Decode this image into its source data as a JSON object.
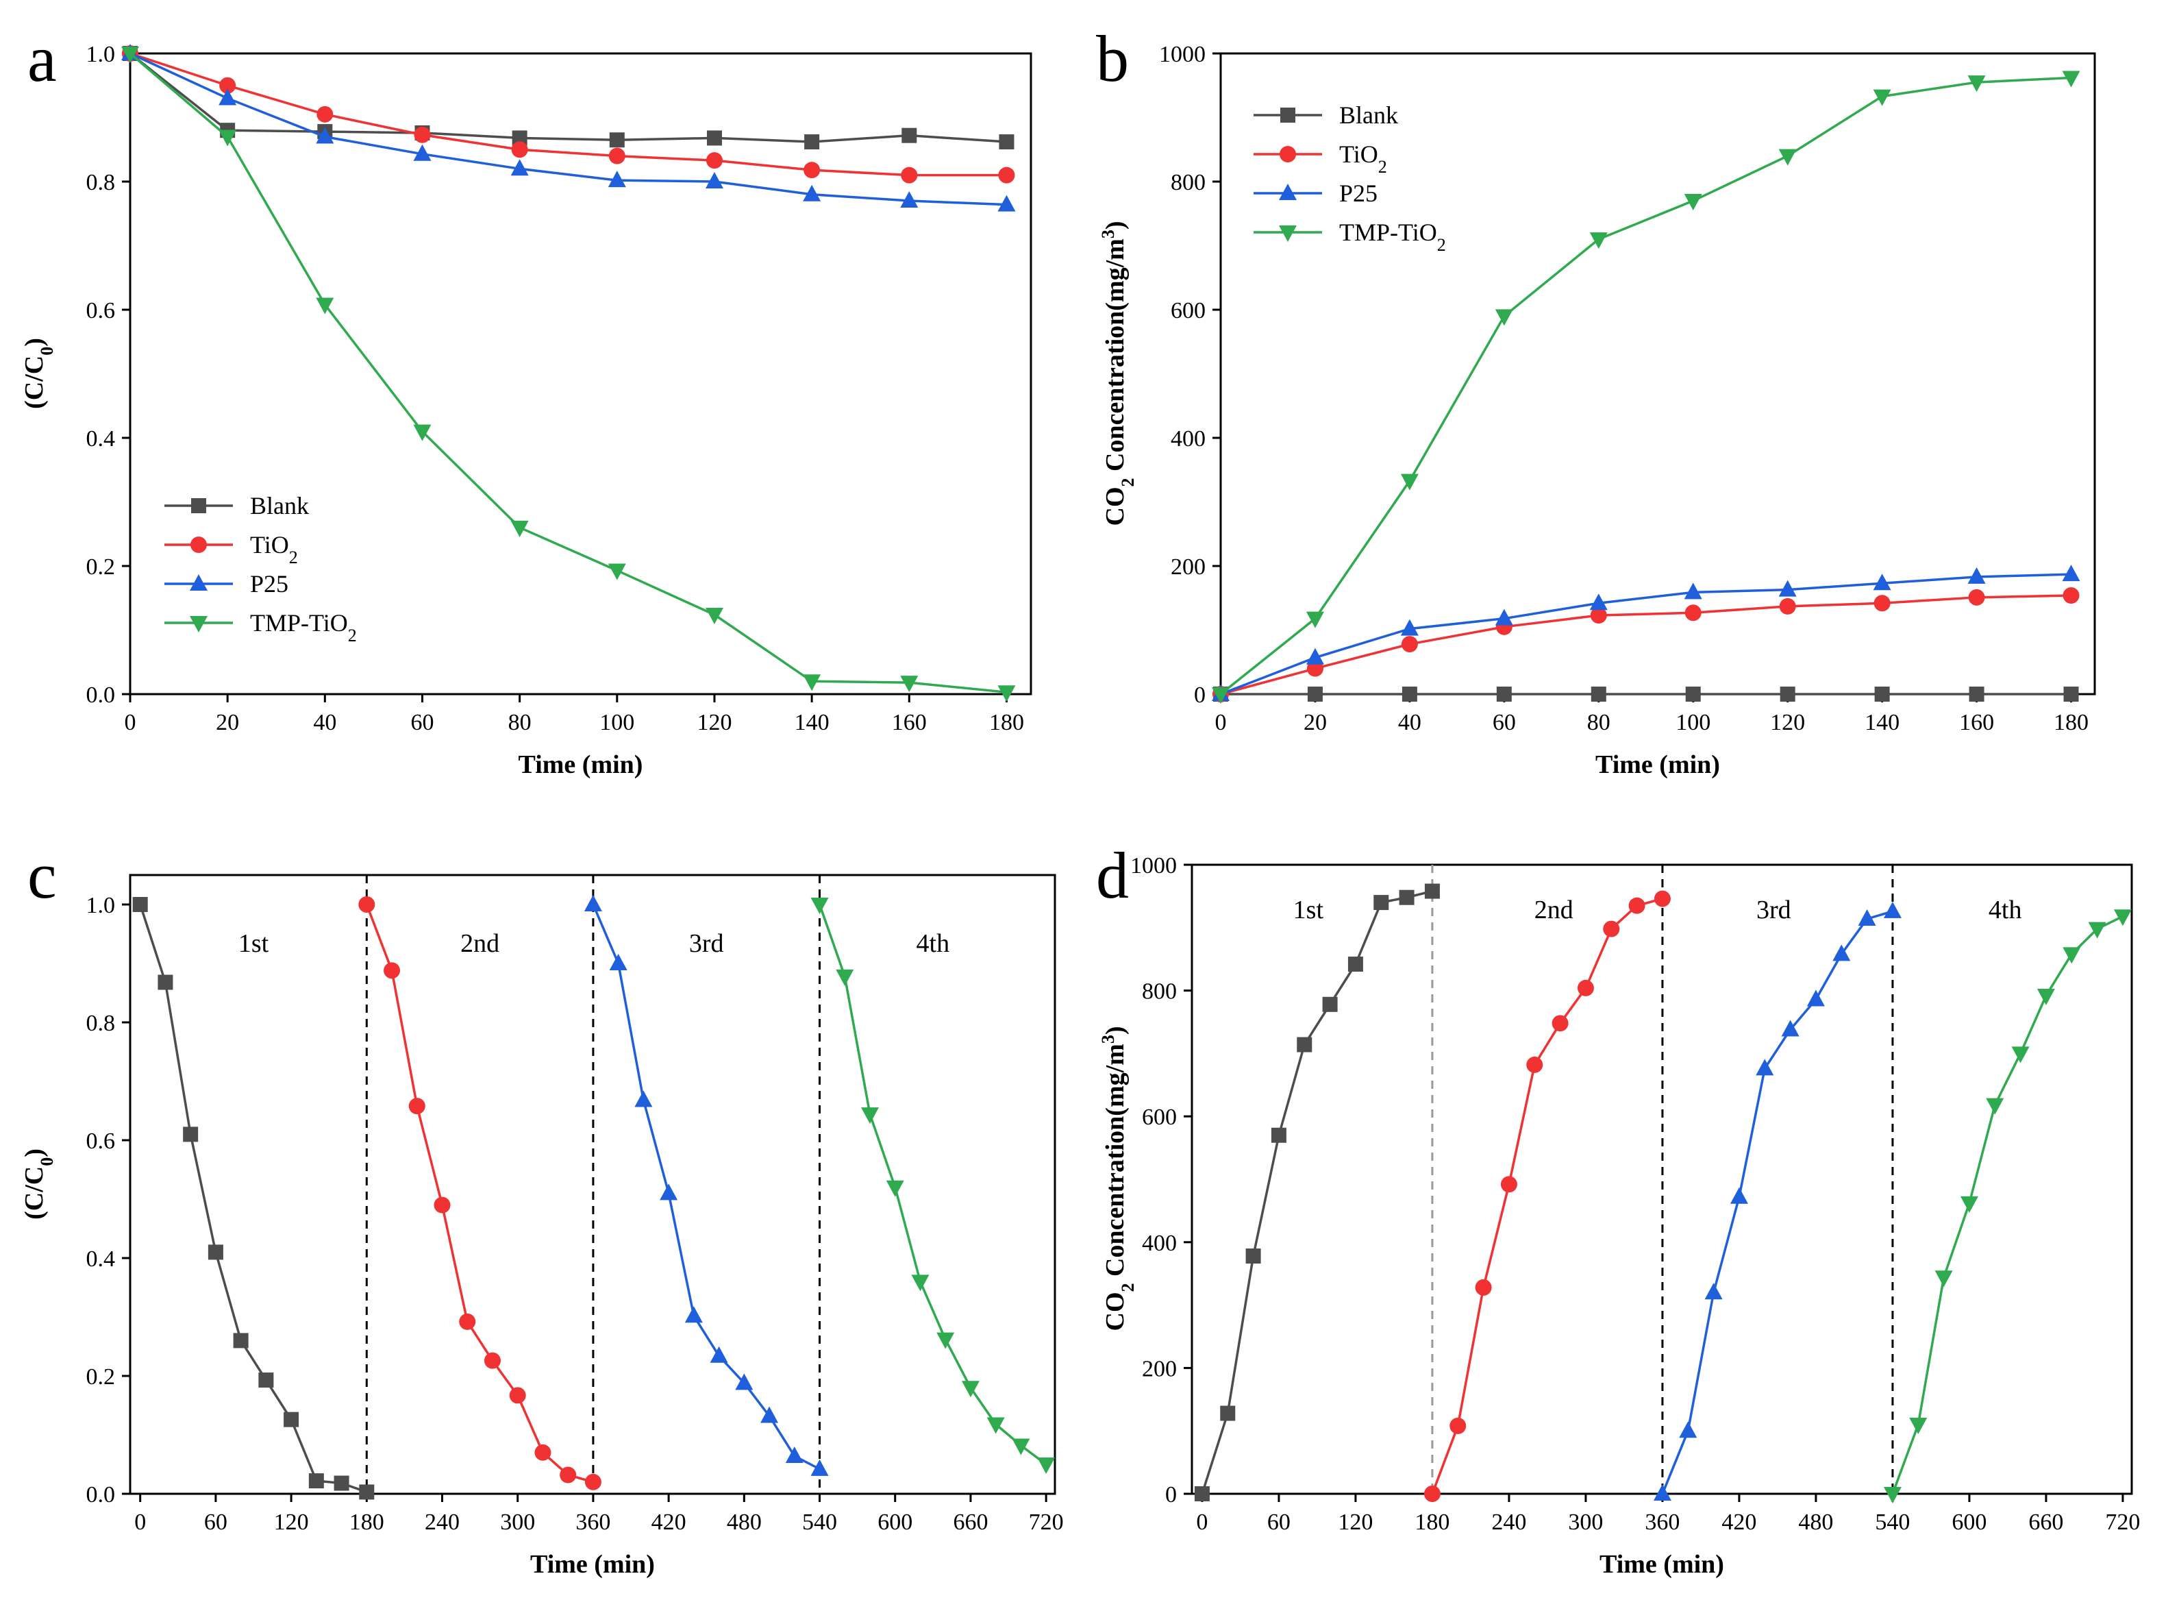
{
  "colors": {
    "Blank": "#4d4d4d",
    "TiO2": "#f03232",
    "P25": "#1f5fdc",
    "TMP-TiO2": "#2faa4f",
    "cycle1": "#4d4d4d",
    "cycle2": "#f03232",
    "cycle3": "#1f5fdc",
    "cycle4": "#2faa4f",
    "grey_dashes": "#999999",
    "black_dashes": "#000000"
  },
  "chart_data": [
    {
      "id": "a",
      "panel_label": "a",
      "type": "line",
      "xlabel": "Time (min)",
      "ylabel": "(C/C0)",
      "ylabel_main": "(C/C",
      "ylabel_sub": "0",
      "ylabel_tail": ")",
      "xlim": [
        0,
        185
      ],
      "ylim": [
        0,
        1.0
      ],
      "xticks": [
        0,
        20,
        40,
        60,
        80,
        100,
        120,
        140,
        160,
        180
      ],
      "xtick_labels": [
        "0",
        "20",
        "40",
        "60",
        "80",
        "100",
        "120",
        "140",
        "160",
        "180"
      ],
      "yticks": [
        0,
        0.2,
        0.4,
        0.6,
        0.8,
        1.0
      ],
      "ytick_labels": [
        "0.0",
        "0.2",
        "0.4",
        "0.6",
        "0.8",
        "1.0"
      ],
      "legend_position": "bottom-left",
      "series": [
        {
          "name": "Blank",
          "label": "Blank",
          "label_sub": "",
          "label_tail": "",
          "marker": "square",
          "color_key": "Blank",
          "x": [
            0,
            20,
            40,
            60,
            80,
            100,
            120,
            140,
            160,
            180
          ],
          "y": [
            1.0,
            0.88,
            0.878,
            0.876,
            0.868,
            0.865,
            0.868,
            0.862,
            0.872,
            0.862
          ]
        },
        {
          "name": "TiO2",
          "label": "TiO",
          "label_sub": "2",
          "label_tail": "",
          "marker": "circle",
          "color_key": "TiO2",
          "x": [
            0,
            20,
            40,
            60,
            80,
            100,
            120,
            140,
            160,
            180
          ],
          "y": [
            1.0,
            0.95,
            0.905,
            0.873,
            0.85,
            0.84,
            0.833,
            0.818,
            0.81,
            0.81
          ]
        },
        {
          "name": "P25",
          "label": "P25",
          "label_sub": "",
          "label_tail": "",
          "marker": "triangle-up",
          "color_key": "P25",
          "x": [
            0,
            20,
            40,
            60,
            80,
            100,
            120,
            140,
            160,
            180
          ],
          "y": [
            1.0,
            0.93,
            0.87,
            0.843,
            0.82,
            0.802,
            0.8,
            0.78,
            0.77,
            0.764
          ]
        },
        {
          "name": "TMP-TiO2",
          "label": "TMP-TiO",
          "label_sub": "2",
          "label_tail": "",
          "marker": "triangle-down",
          "color_key": "TMP-TiO2",
          "x": [
            0,
            20,
            40,
            60,
            80,
            100,
            120,
            140,
            160,
            180
          ],
          "y": [
            1.0,
            0.87,
            0.608,
            0.41,
            0.26,
            0.193,
            0.124,
            0.02,
            0.018,
            0.003
          ]
        }
      ]
    },
    {
      "id": "b",
      "panel_label": "b",
      "type": "line",
      "xlabel": "Time (min)",
      "ylabel": "CO2 Concentration(mg/m3)",
      "ylabel_main": "CO",
      "ylabel_sub": "2",
      "ylabel_mid": " Concentration(mg/m",
      "ylabel_sup": "3",
      "ylabel_tail": ")",
      "xlim": [
        0,
        185
      ],
      "ylim": [
        0,
        1000
      ],
      "xticks": [
        0,
        20,
        40,
        60,
        80,
        100,
        120,
        140,
        160,
        180
      ],
      "xtick_labels": [
        "0",
        "20",
        "40",
        "60",
        "80",
        "100",
        "120",
        "140",
        "160",
        "180"
      ],
      "yticks": [
        0,
        200,
        400,
        600,
        800,
        1000
      ],
      "ytick_labels": [
        "0",
        "200",
        "400",
        "600",
        "800",
        "1000"
      ],
      "legend_position": "top-left",
      "series": [
        {
          "name": "Blank",
          "label": "Blank",
          "label_sub": "",
          "label_tail": "",
          "marker": "square",
          "color_key": "Blank",
          "x": [
            0,
            20,
            40,
            60,
            80,
            100,
            120,
            140,
            160,
            180
          ],
          "y": [
            0,
            0,
            0,
            0,
            0,
            0,
            0,
            0,
            0,
            0
          ]
        },
        {
          "name": "TiO2",
          "label": "TiO",
          "label_sub": "2",
          "label_tail": "",
          "marker": "circle",
          "color_key": "TiO2",
          "x": [
            0,
            20,
            40,
            60,
            80,
            100,
            120,
            140,
            160,
            180
          ],
          "y": [
            0,
            40,
            78,
            105,
            123,
            127,
            137,
            142,
            151,
            154
          ]
        },
        {
          "name": "P25",
          "label": "P25",
          "label_sub": "",
          "label_tail": "",
          "marker": "triangle-up",
          "color_key": "P25",
          "x": [
            0,
            20,
            40,
            60,
            80,
            100,
            120,
            140,
            160,
            180
          ],
          "y": [
            0,
            57,
            102,
            118,
            142,
            159,
            163,
            173,
            183,
            187
          ]
        },
        {
          "name": "TMP-TiO2",
          "label": "TMP-TiO",
          "label_sub": "2",
          "label_tail": "",
          "marker": "triangle-down",
          "color_key": "TMP-TiO2",
          "x": [
            0,
            20,
            40,
            60,
            80,
            100,
            120,
            140,
            160,
            180
          ],
          "y": [
            0,
            118,
            333,
            590,
            710,
            770,
            840,
            933,
            955,
            962
          ]
        }
      ]
    },
    {
      "id": "c",
      "panel_label": "c",
      "type": "line",
      "xlabel": "Time (min)",
      "ylabel": "(C/C0)",
      "ylabel_main": "(C/C",
      "ylabel_sub": "0",
      "ylabel_tail": ")",
      "xlim": [
        -8,
        727
      ],
      "ylim": [
        0,
        1.05
      ],
      "xticks": [
        0,
        60,
        120,
        180,
        240,
        300,
        360,
        420,
        480,
        540,
        600,
        660,
        720
      ],
      "xtick_labels": [
        "0",
        "60",
        "120",
        "180",
        "240",
        "300",
        "360",
        "420",
        "480",
        "540",
        "600",
        "660",
        "720"
      ],
      "yticks": [
        0,
        0.2,
        0.4,
        0.6,
        0.8,
        1.0
      ],
      "ytick_labels": [
        "0.0",
        "0.2",
        "0.4",
        "0.6",
        "0.8",
        "1.0"
      ],
      "dividers": [
        {
          "x": 180,
          "style_key": "black_dashes"
        },
        {
          "x": 360,
          "style_key": "black_dashes"
        },
        {
          "x": 540,
          "style_key": "black_dashes"
        }
      ],
      "cycle_labels": [
        {
          "text": "1st",
          "x": 90,
          "y": 0.92
        },
        {
          "text": "2nd",
          "x": 270,
          "y": 0.92
        },
        {
          "text": "3rd",
          "x": 450,
          "y": 0.92
        },
        {
          "text": "4th",
          "x": 630,
          "y": 0.92
        }
      ],
      "series": [
        {
          "name": "1st",
          "marker": "square",
          "color_key": "cycle1",
          "x": [
            0,
            20,
            40,
            60,
            80,
            100,
            120,
            140,
            160,
            180
          ],
          "y": [
            1.0,
            0.868,
            0.61,
            0.41,
            0.26,
            0.193,
            0.126,
            0.022,
            0.018,
            0.003
          ]
        },
        {
          "name": "2nd",
          "marker": "circle",
          "color_key": "cycle2",
          "x": [
            180,
            200,
            220,
            240,
            260,
            280,
            300,
            320,
            340,
            360
          ],
          "y": [
            1.0,
            0.888,
            0.658,
            0.49,
            0.292,
            0.226,
            0.167,
            0.07,
            0.032,
            0.02
          ]
        },
        {
          "name": "3rd",
          "marker": "triangle-up",
          "color_key": "cycle3",
          "x": [
            360,
            380,
            400,
            420,
            440,
            460,
            480,
            500,
            520,
            540
          ],
          "y": [
            1.0,
            0.9,
            0.668,
            0.51,
            0.302,
            0.234,
            0.188,
            0.132,
            0.064,
            0.042
          ]
        },
        {
          "name": "4th",
          "marker": "triangle-down",
          "color_key": "cycle4",
          "x": [
            540,
            560,
            580,
            600,
            620,
            640,
            660,
            680,
            700,
            720
          ],
          "y": [
            1.0,
            0.878,
            0.644,
            0.52,
            0.36,
            0.262,
            0.18,
            0.118,
            0.082,
            0.05
          ]
        }
      ]
    },
    {
      "id": "d",
      "panel_label": "d",
      "type": "line",
      "xlabel": "Time (min)",
      "ylabel": "CO2 Concentration(mg/m3)",
      "ylabel_main": "CO",
      "ylabel_sub": "2",
      "ylabel_mid": " Concentration(mg/m",
      "ylabel_sup": "3",
      "ylabel_tail": ")",
      "xlim": [
        -8,
        727
      ],
      "ylim": [
        0,
        1000
      ],
      "xticks": [
        0,
        60,
        120,
        180,
        240,
        300,
        360,
        420,
        480,
        540,
        600,
        660,
        720
      ],
      "xtick_labels": [
        "0",
        "60",
        "120",
        "180",
        "240",
        "300",
        "360",
        "420",
        "480",
        "540",
        "600",
        "660",
        "720"
      ],
      "yticks": [
        0,
        200,
        400,
        600,
        800,
        1000
      ],
      "ytick_labels": [
        "0",
        "200",
        "400",
        "600",
        "800",
        "1000"
      ],
      "dividers": [
        {
          "x": 180,
          "style_key": "grey_dashes"
        },
        {
          "x": 360,
          "style_key": "black_dashes"
        },
        {
          "x": 540,
          "style_key": "black_dashes"
        }
      ],
      "cycle_labels": [
        {
          "text": "1st",
          "x": 83,
          "y": 915
        },
        {
          "text": "2nd",
          "x": 275,
          "y": 915
        },
        {
          "text": "3rd",
          "x": 447,
          "y": 915
        },
        {
          "text": "4th",
          "x": 628,
          "y": 915
        }
      ],
      "series": [
        {
          "name": "1st",
          "marker": "square",
          "color_key": "cycle1",
          "x": [
            0,
            20,
            40,
            60,
            80,
            100,
            120,
            140,
            160,
            180
          ],
          "y": [
            0,
            128,
            378,
            570,
            714,
            778,
            842,
            940,
            948,
            958
          ]
        },
        {
          "name": "2nd",
          "marker": "circle",
          "color_key": "cycle2",
          "x": [
            180,
            200,
            220,
            240,
            260,
            280,
            300,
            320,
            340,
            360
          ],
          "y": [
            0,
            108,
            328,
            492,
            682,
            748,
            804,
            898,
            935,
            946
          ]
        },
        {
          "name": "3rd",
          "marker": "triangle-up",
          "color_key": "cycle3",
          "x": [
            360,
            380,
            400,
            420,
            440,
            460,
            480,
            500,
            520,
            540
          ],
          "y": [
            0,
            100,
            320,
            472,
            676,
            738,
            786,
            858,
            914,
            926
          ]
        },
        {
          "name": "4th",
          "marker": "triangle-down",
          "color_key": "cycle4",
          "x": [
            540,
            560,
            580,
            600,
            620,
            640,
            660,
            680,
            700,
            720
          ],
          "y": [
            0,
            110,
            344,
            462,
            618,
            700,
            792,
            858,
            898,
            918
          ]
        }
      ]
    }
  ]
}
